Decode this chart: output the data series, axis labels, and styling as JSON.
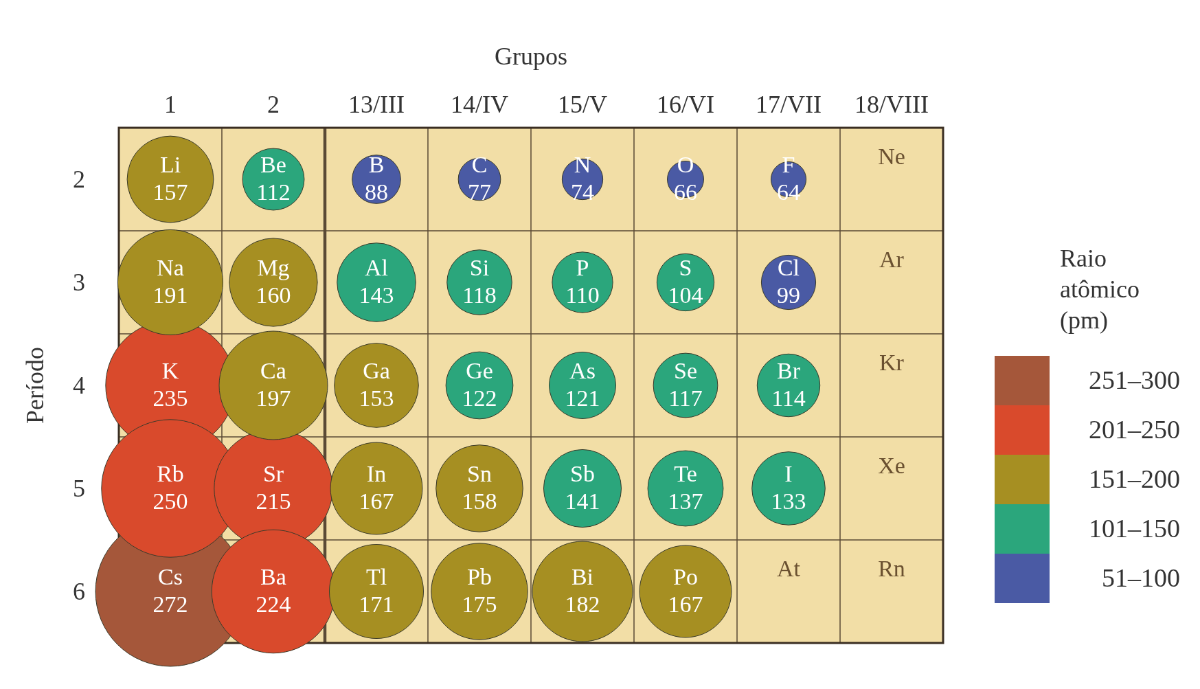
{
  "chart_data": {
    "type": "bubble",
    "xlabel": "Grupos",
    "ylabel": "Período",
    "legend_title": "Raio atômico (pm)",
    "legend": "right",
    "categories": [
      "1",
      "2",
      "13/III",
      "14/IV",
      "15/V",
      "16/VI",
      "17/VII",
      "18/VIII"
    ],
    "ylim": [
      6.5,
      1.5
    ],
    "yticks": [
      2,
      3,
      4,
      5,
      6
    ],
    "series": [
      {
        "name": "251–300",
        "color": "#a5573a",
        "x": [
          "1"
        ],
        "values": [
          6
        ],
        "sizes": [
          1
        ],
        "value_labels": [
          "Cs\n272"
        ]
      },
      {
        "name": "201–250",
        "color": "#d94a2c",
        "x": [
          "1",
          "1",
          "2",
          "2"
        ],
        "values": [
          4,
          5,
          5,
          6
        ],
        "sizes": [
          0.746,
          0.845,
          0.625,
          0.678
        ],
        "value_labels": [
          "K\n235",
          "Rb\n250",
          "Sr\n215",
          "Ba\n224"
        ]
      },
      {
        "name": "151–200",
        "color": "#a68f22",
        "x": [
          "1",
          "1",
          "2",
          "2",
          "13/III",
          "13/III",
          "14/IV",
          "13/III",
          "14/IV",
          "15/V",
          "16/VI"
        ],
        "values": [
          2,
          3,
          3,
          4,
          4,
          5,
          5,
          6,
          6,
          6,
          6
        ],
        "sizes": [
          0.333,
          0.493,
          0.346,
          0.525,
          0.316,
          0.377,
          0.337,
          0.395,
          0.414,
          0.448,
          0.377
        ],
        "value_labels": [
          "Li\n157",
          "Na\n191",
          "Mg\n160",
          "Ca\n197",
          "Ga\n153",
          "In\n167",
          "Sn\n158",
          "Tl\n171",
          "Pb\n175",
          "Bi\n182",
          "Po\n167"
        ]
      },
      {
        "name": "101–150",
        "color": "#2ba67c",
        "x": [
          "2",
          "13/III",
          "14/IV",
          "15/V",
          "16/VI",
          "14/IV",
          "15/V",
          "16/VI",
          "17/VII",
          "15/V",
          "16/VI",
          "17/VII"
        ],
        "values": [
          2,
          3,
          3,
          3,
          3,
          4,
          4,
          4,
          4,
          5,
          5,
          5
        ],
        "sizes": [
          0.17,
          0.276,
          0.188,
          0.164,
          0.146,
          0.201,
          0.198,
          0.185,
          0.176,
          0.269,
          0.254,
          0.239
        ],
        "value_labels": [
          "Be\n112",
          "Al\n143",
          "Si\n118",
          "P\n110",
          "S\n104",
          "Ge\n122",
          "As\n121",
          "Se\n117",
          "Br\n114",
          "Sb\n141",
          "Te\n137",
          "I\n133"
        ]
      },
      {
        "name": "51–100",
        "color": "#4a5aa4",
        "x": [
          "13/III",
          "14/IV",
          "15/V",
          "16/VI",
          "17/VII",
          "17/VII"
        ],
        "values": [
          2,
          2,
          2,
          2,
          2,
          3
        ],
        "sizes": [
          0.105,
          0.08,
          0.074,
          0.059,
          0.055,
          0.132
        ],
        "value_labels": [
          "B\n88",
          "C\n77",
          "N\n74",
          "O\n66",
          "F\n64",
          "Cl\n99"
        ]
      }
    ],
    "annotations": [
      "Ne",
      "Ar",
      "Kr",
      "Xe",
      "At",
      "Rn"
    ]
  }
}
